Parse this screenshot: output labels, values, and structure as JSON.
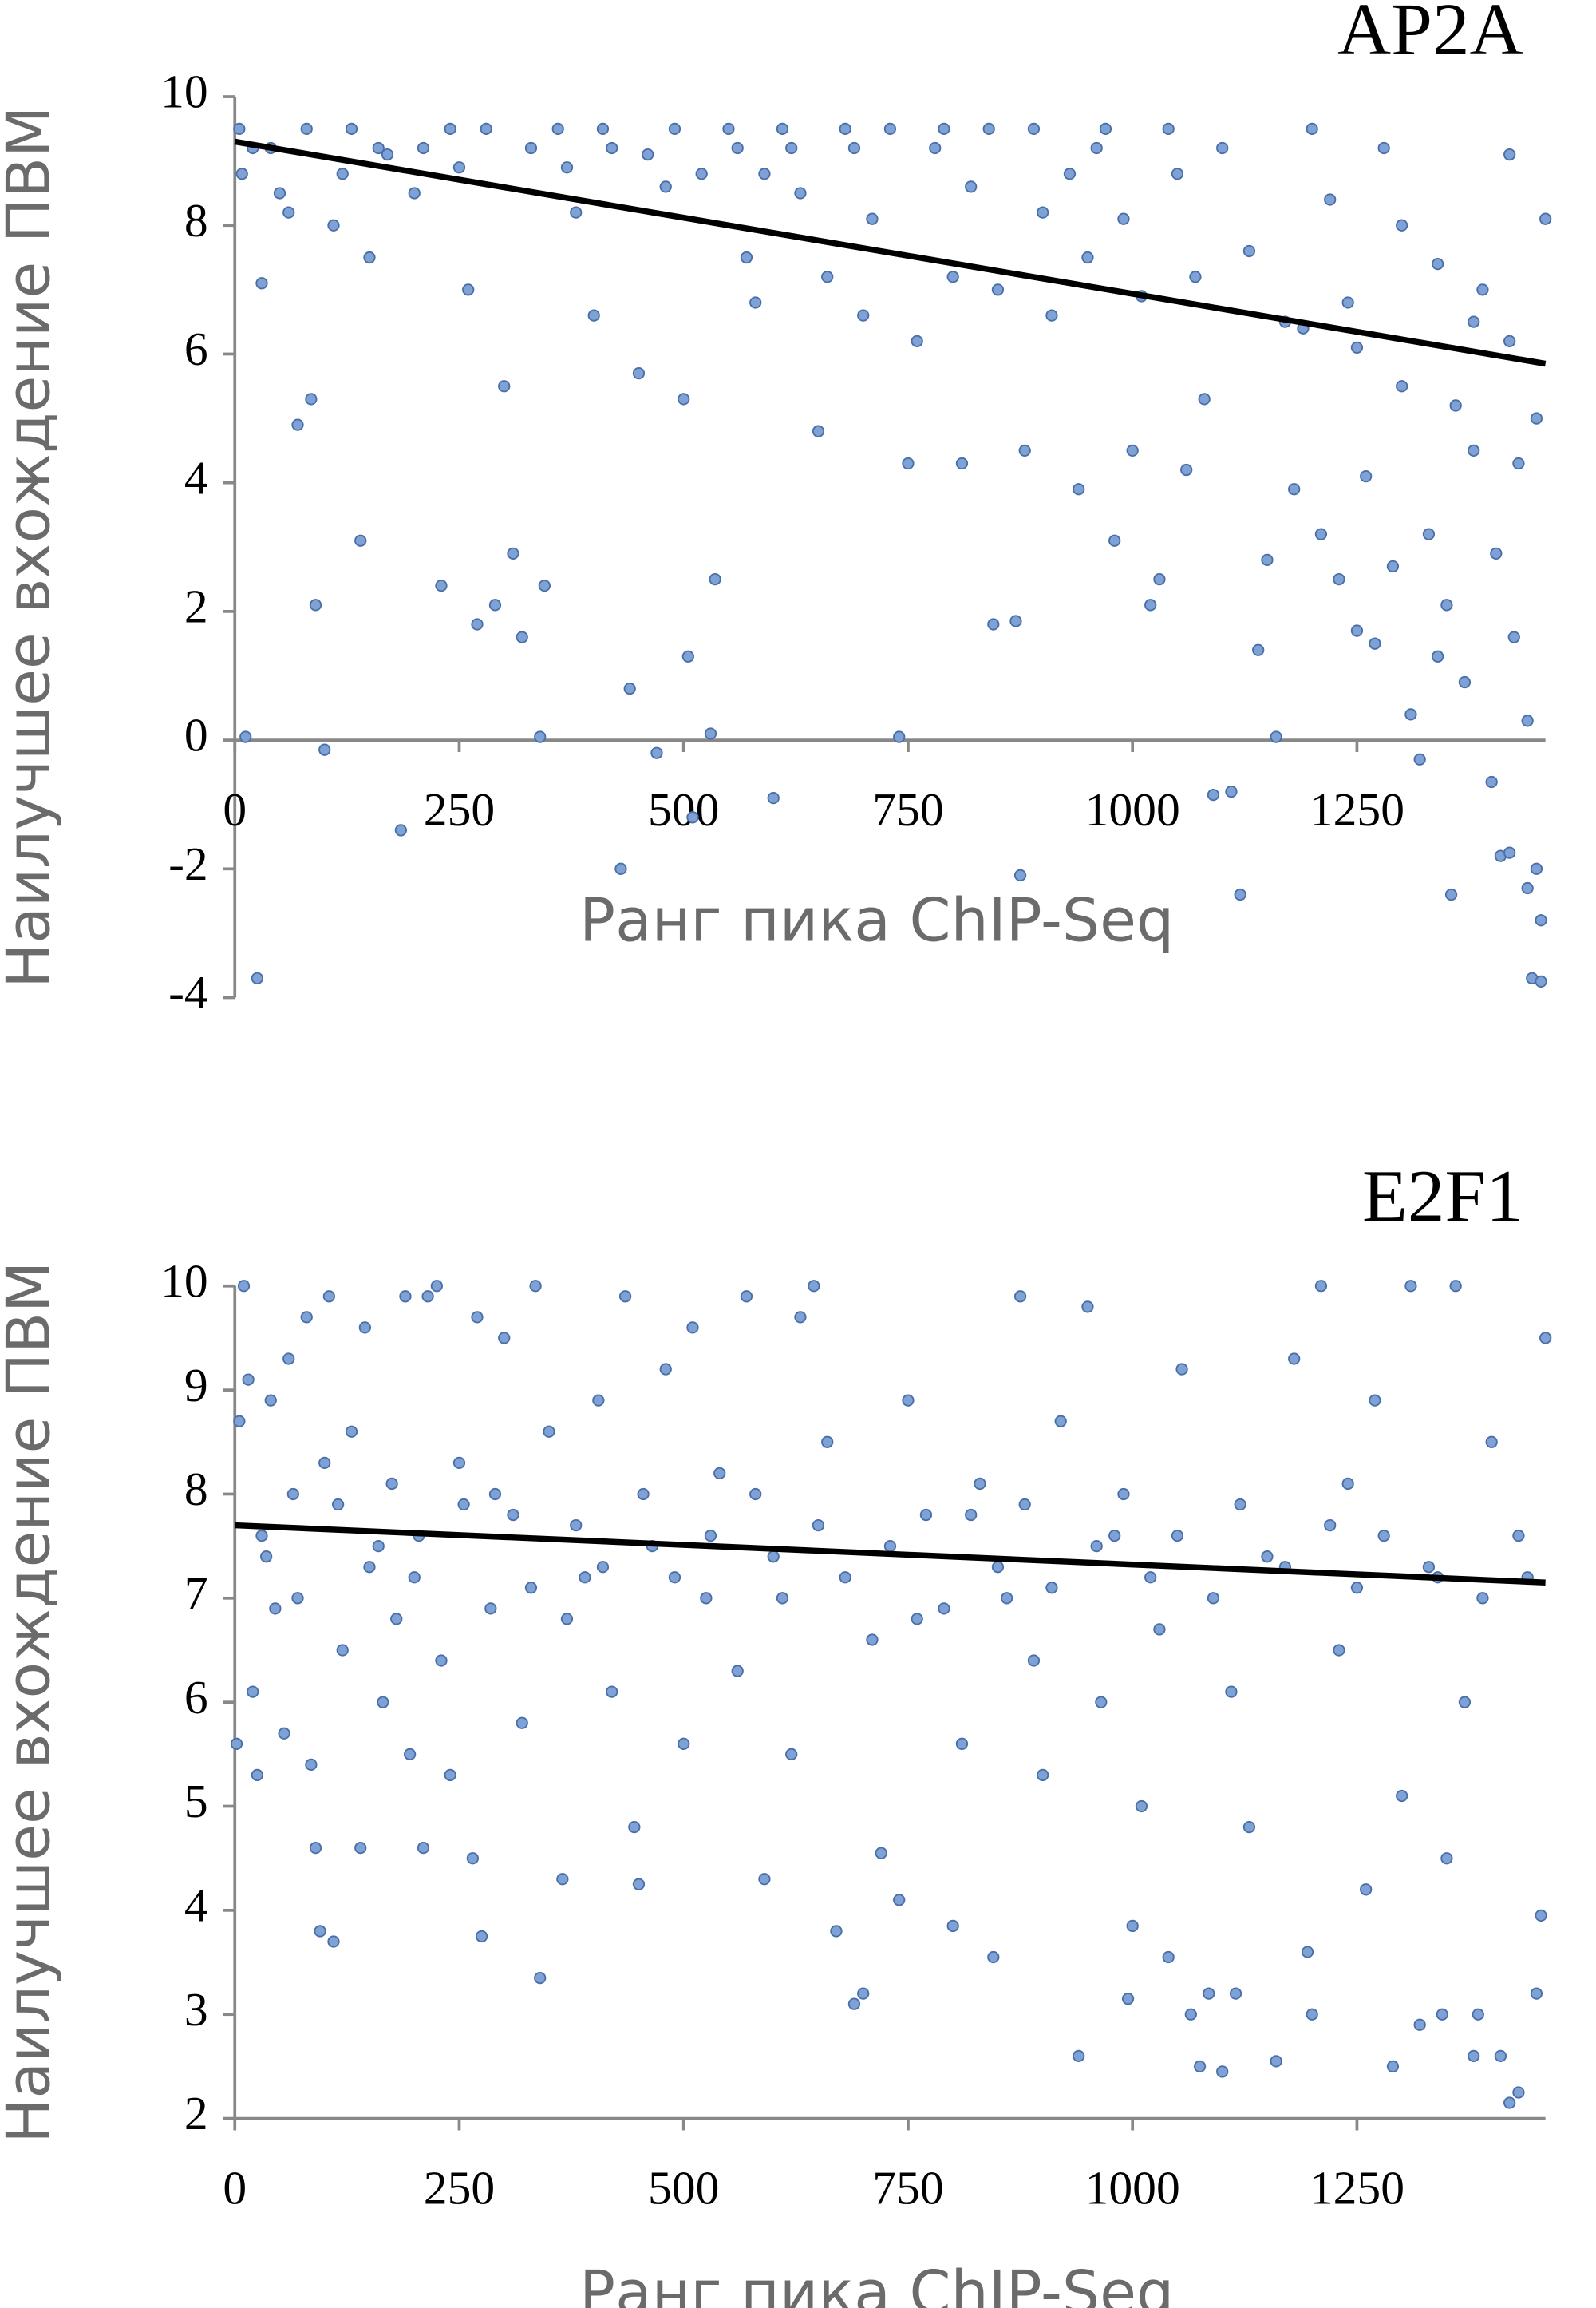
{
  "chart_data": [
    {
      "type": "scatter",
      "title": "AP2A",
      "x_label": "Ранг пика ChIP-Seq",
      "y_label": "Наилучшее вхождение ПВМ",
      "color": "#7ea2d6",
      "x": [
        5,
        8,
        12,
        25,
        30,
        40,
        60,
        70,
        85,
        90,
        100,
        110,
        130,
        140,
        150,
        170,
        185,
        200,
        230,
        240,
        260,
        270,
        290,
        300,
        310,
        320,
        340,
        345,
        360,
        380,
        400,
        420,
        430,
        440,
        450,
        470,
        480,
        500,
        505,
        510,
        530,
        535,
        550,
        570,
        590,
        600,
        620,
        650,
        680,
        700,
        740,
        750,
        780,
        800,
        810,
        840,
        845,
        870,
        875,
        880,
        900,
        940,
        960,
        980,
        1000,
        1020,
        1030,
        1050,
        1060,
        1080,
        1090,
        1100,
        1110,
        1120,
        1140,
        1150,
        1160,
        1170,
        1180,
        1200,
        1210,
        1230,
        1240,
        1250,
        1260,
        1270,
        1280,
        1290,
        1300,
        1310,
        1320,
        1330,
        1340,
        1350,
        1355,
        1360,
        1370,
        1380,
        1390,
        1400,
        1405,
        1410,
        1420,
        1425,
        1430,
        1440,
        1445,
        1450,
        1455,
        1460,
        20,
        50,
        80,
        120,
        160,
        210,
        250,
        280,
        330,
        370,
        410,
        460,
        490,
        520,
        560,
        580,
        610,
        630,
        660,
        690,
        710,
        730,
        760,
        790,
        820,
        850,
        890,
        910,
        930,
        950,
        970,
        990,
        1010,
        1040,
        1070,
        1130,
        1190,
        1220,
        1250,
        1300,
        1340,
        1380,
        1420,
        1450,
        1420,
        1440,
        1455
      ],
      "values": [
        9.5,
        8.8,
        0.05,
        -3.7,
        7.1,
        9.2,
        8.2,
        4.9,
        5.3,
        2.1,
        -0.15,
        8.0,
        9.5,
        3.1,
        7.5,
        9.1,
        -1.4,
        8.5,
        2.4,
        9.5,
        7.0,
        1.8,
        2.1,
        5.5,
        2.9,
        1.6,
        0.05,
        2.4,
        9.5,
        8.2,
        6.6,
        9.2,
        -2.0,
        0.8,
        5.7,
        -0.2,
        8.6,
        5.3,
        1.3,
        -1.2,
        0.1,
        2.5,
        9.5,
        7.5,
        8.8,
        -0.9,
        9.2,
        4.8,
        9.5,
        6.6,
        0.05,
        4.3,
        9.2,
        7.2,
        4.3,
        9.5,
        1.8,
        1.85,
        -2.1,
        4.5,
        8.2,
        3.9,
        9.2,
        3.1,
        4.5,
        2.1,
        2.5,
        8.8,
        4.2,
        5.3,
        -0.85,
        9.2,
        -0.8,
        -2.4,
        1.4,
        2.8,
        0.05,
        6.5,
        3.9,
        9.5,
        3.2,
        2.5,
        6.8,
        1.7,
        4.1,
        1.5,
        9.2,
        2.7,
        5.5,
        0.4,
        -0.3,
        3.2,
        1.3,
        2.1,
        -2.4,
        5.2,
        0.9,
        4.5,
        7.0,
        -0.65,
        2.9,
        -1.8,
        6.2,
        1.6,
        4.3,
        0.3,
        -3.7,
        -2.0,
        -3.75,
        8.1,
        9.2,
        8.5,
        9.5,
        8.8,
        9.2,
        9.2,
        8.9,
        9.5,
        9.2,
        8.9,
        9.5,
        9.1,
        9.5,
        8.8,
        9.2,
        6.8,
        9.5,
        8.5,
        7.2,
        9.2,
        8.1,
        9.5,
        6.2,
        9.5,
        8.6,
        7.0,
        9.5,
        6.6,
        8.8,
        7.5,
        9.5,
        8.1,
        6.9,
        9.5,
        7.2,
        7.6,
        6.4,
        8.4,
        6.1,
        8.0,
        7.4,
        6.5,
        9.1,
        5.0,
        -1.75,
        -2.3,
        -2.8
      ],
      "trendline": {
        "x": [
          0,
          1460
        ],
        "y": [
          9.3,
          5.85
        ]
      },
      "xlim": [
        0,
        1460
      ],
      "ylim": [
        -4,
        10
      ],
      "xticks": [
        0,
        250,
        500,
        750,
        1000,
        1250
      ],
      "yticks": [
        -4,
        -2,
        0,
        2,
        4,
        6,
        8,
        10
      ]
    },
    {
      "type": "scatter",
      "title": "E2F1",
      "x_label": "Ранг пика ChIP-Seq",
      "y_label": "Наилучшее вхождение ПВМ",
      "color": "#7ea2d6",
      "x": [
        2,
        5,
        10,
        15,
        20,
        25,
        30,
        40,
        45,
        55,
        60,
        70,
        80,
        85,
        90,
        95,
        100,
        105,
        110,
        120,
        130,
        140,
        145,
        150,
        165,
        175,
        190,
        195,
        200,
        210,
        215,
        225,
        230,
        240,
        250,
        265,
        270,
        275,
        285,
        300,
        310,
        320,
        335,
        340,
        350,
        365,
        370,
        390,
        405,
        420,
        435,
        445,
        450,
        465,
        480,
        500,
        510,
        525,
        540,
        560,
        570,
        590,
        600,
        620,
        630,
        645,
        660,
        670,
        690,
        700,
        710,
        720,
        740,
        750,
        770,
        790,
        800,
        810,
        830,
        845,
        860,
        875,
        890,
        900,
        920,
        940,
        950,
        965,
        980,
        995,
        1000,
        1010,
        1030,
        1040,
        1055,
        1065,
        1075,
        1085,
        1100,
        1110,
        1115,
        1130,
        1150,
        1160,
        1180,
        1195,
        1200,
        1210,
        1230,
        1240,
        1260,
        1270,
        1290,
        1300,
        1310,
        1320,
        1330,
        1345,
        1350,
        1360,
        1370,
        1380,
        1385,
        1400,
        1410,
        1420,
        1430,
        1440,
        1450,
        1455,
        1460,
        35,
        65,
        115,
        160,
        180,
        205,
        255,
        290,
        330,
        380,
        410,
        455,
        490,
        530,
        580,
        610,
        650,
        680,
        730,
        760,
        820,
        850,
        880,
        910,
        960,
        990,
        1020,
        1050,
        1090,
        1120,
        1170,
        1220,
        1250,
        1280,
        1340,
        1390,
        1430
      ],
      "values": [
        5.6,
        8.7,
        10.0,
        9.1,
        6.1,
        5.3,
        7.6,
        8.9,
        6.9,
        5.7,
        9.3,
        7.0,
        9.7,
        5.4,
        4.6,
        3.8,
        8.3,
        9.9,
        3.7,
        6.5,
        8.6,
        4.6,
        9.6,
        7.3,
        6.0,
        8.1,
        9.9,
        5.5,
        7.2,
        4.6,
        9.9,
        10.0,
        6.4,
        5.3,
        8.3,
        4.5,
        9.7,
        3.75,
        6.9,
        9.5,
        7.8,
        5.8,
        10.0,
        3.35,
        8.6,
        4.3,
        6.8,
        7.2,
        8.9,
        6.1,
        9.9,
        4.8,
        4.25,
        7.5,
        9.2,
        5.6,
        9.6,
        7.0,
        8.2,
        6.3,
        9.9,
        4.3,
        7.4,
        5.5,
        9.7,
        10.0,
        8.5,
        3.8,
        3.1,
        3.2,
        6.6,
        4.55,
        4.1,
        8.9,
        7.8,
        6.9,
        3.85,
        5.6,
        8.1,
        3.55,
        7.0,
        9.9,
        6.4,
        5.3,
        8.7,
        2.6,
        9.8,
        6.0,
        7.6,
        3.15,
        3.85,
        5.0,
        6.7,
        3.55,
        9.2,
        3.0,
        2.5,
        3.2,
        2.45,
        6.1,
        3.2,
        4.8,
        7.4,
        2.55,
        9.3,
        3.6,
        3.0,
        10.0,
        6.5,
        8.1,
        4.2,
        8.9,
        2.5,
        5.1,
        10.0,
        2.9,
        7.3,
        3.0,
        4.5,
        10.0,
        6.0,
        2.6,
        3.0,
        8.5,
        2.6,
        2.15,
        2.25,
        7.2,
        3.2,
        3.95,
        9.5,
        7.4,
        8.0,
        7.9,
        7.5,
        6.8,
        7.6,
        7.9,
        8.0,
        7.1,
        7.7,
        7.3,
        8.0,
        7.2,
        7.6,
        8.0,
        7.0,
        7.7,
        7.2,
        7.5,
        6.8,
        7.8,
        7.3,
        7.9,
        7.1,
        7.5,
        8.0,
        7.2,
        7.6,
        7.0,
        7.9,
        7.3,
        7.7,
        7.1,
        7.6,
        7.2,
        7.0,
        7.6
      ],
      "trendline": {
        "x": [
          0,
          1460
        ],
        "y": [
          7.7,
          7.15
        ]
      },
      "xlim": [
        0,
        1460
      ],
      "ylim": [
        2,
        10
      ],
      "xticks": [
        0,
        250,
        500,
        750,
        1000,
        1250
      ],
      "yticks": [
        2,
        3,
        4,
        5,
        6,
        7,
        8,
        9,
        10
      ]
    }
  ]
}
